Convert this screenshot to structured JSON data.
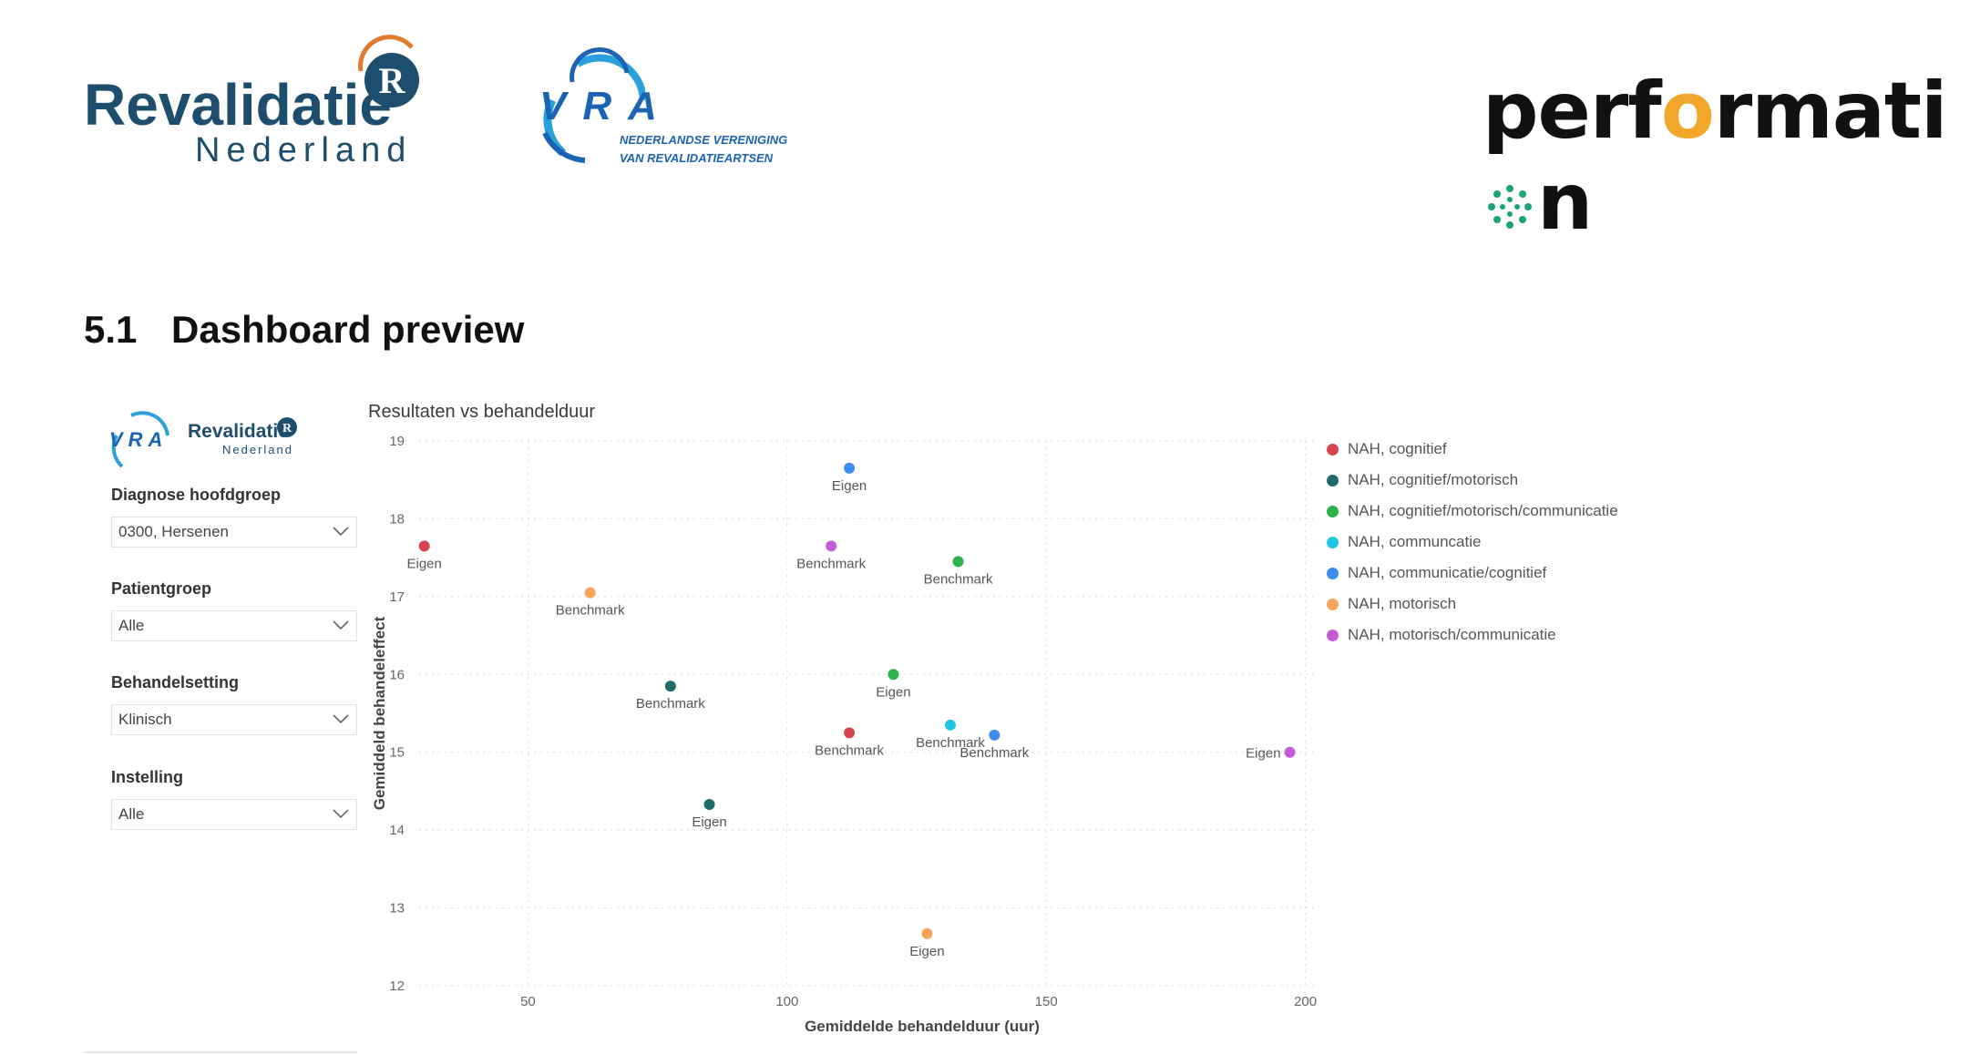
{
  "logos": {
    "revalidatie": {
      "main": "Revalidatie",
      "sub": "Nederland",
      "badge": "R"
    },
    "vra": {
      "letters": "VRA",
      "tag1": "NEDERLANDSE VERENIGING",
      "tag2": "VAN REVALIDATIEARTSEN"
    },
    "performation": {
      "text_before": "perf",
      "o": "o",
      "text_after": "rmati",
      "end": "n"
    }
  },
  "heading": {
    "number": "5.1",
    "title": "Dashboard preview"
  },
  "dashboard": {
    "mini_logo": {
      "vra": "VRA",
      "revalidatie": "Revalidatie",
      "nederland": "Nederland"
    },
    "slicers": [
      {
        "label": "Diagnose hoofdgroep",
        "value": "0300, Hersenen"
      },
      {
        "label": "Patientgroep",
        "value": "Alle"
      },
      {
        "label": "Behandelsetting",
        "value": "Klinisch"
      },
      {
        "label": "Instelling",
        "value": "Alle"
      }
    ]
  },
  "chart_data": {
    "type": "scatter",
    "title": "Resultaten vs behandelduur",
    "xlabel": "Gemiddelde behandelduur (uur)",
    "ylabel": "Gemiddeld behandeleffect",
    "xlim": [
      29,
      202
    ],
    "ylim": [
      12,
      19
    ],
    "xticks": [
      50,
      100,
      150,
      200
    ],
    "yticks": [
      12,
      13,
      14,
      15,
      16,
      17,
      18,
      19
    ],
    "grid": true,
    "legend_position": "right",
    "series": [
      {
        "name": "NAH, cognitief",
        "color": "#d64550",
        "points": [
          {
            "x": 30.0,
            "y": 17.65,
            "label": "Eigen"
          },
          {
            "x": 112.0,
            "y": 15.25,
            "label": "Benchmark"
          }
        ]
      },
      {
        "name": "NAH, cognitief/motorisch",
        "color": "#1f6b6b",
        "points": [
          {
            "x": 85.0,
            "y": 14.33,
            "label": "Eigen"
          },
          {
            "x": 77.5,
            "y": 15.85,
            "label": "Benchmark"
          }
        ]
      },
      {
        "name": "NAH, cognitief/motorisch/communicatie",
        "color": "#2eb34a",
        "points": [
          {
            "x": 120.5,
            "y": 16.0,
            "label": "Eigen"
          },
          {
            "x": 133.0,
            "y": 17.45,
            "label": "Benchmark"
          }
        ]
      },
      {
        "name": "NAH, communcatie",
        "color": "#1ec6e6",
        "points": [
          {
            "x": 131.5,
            "y": 15.35,
            "label": "Benchmark"
          }
        ]
      },
      {
        "name": "NAH, communicatie/cognitief",
        "color": "#3f8cf0",
        "points": [
          {
            "x": 112.0,
            "y": 18.65,
            "label": "Eigen"
          },
          {
            "x": 140.0,
            "y": 15.22,
            "label": "Benchmark"
          }
        ]
      },
      {
        "name": "NAH, motorisch",
        "color": "#f5a55a",
        "points": [
          {
            "x": 127.0,
            "y": 12.67,
            "label": "Eigen"
          },
          {
            "x": 62.0,
            "y": 17.05,
            "label": "Benchmark"
          }
        ]
      },
      {
        "name": "NAH, motorisch/communicatie",
        "color": "#c45cd6",
        "points": [
          {
            "x": 197.0,
            "y": 15.0,
            "label": "Eigen"
          },
          {
            "x": 108.5,
            "y": 17.65,
            "label": "Benchmark"
          }
        ]
      }
    ]
  }
}
